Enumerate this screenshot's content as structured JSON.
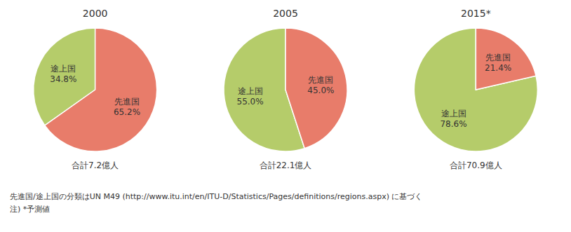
{
  "chart_data": [
    {
      "type": "pie",
      "title": "2000",
      "categories": [
        "途上国",
        "先進国"
      ],
      "values": [
        34.8,
        65.2
      ],
      "value_labels": [
        "34.8%",
        "65.2%"
      ],
      "data_labels": true,
      "colors": [
        "#b5cc6a",
        "#e87c6a"
      ],
      "annotations": [
        "合計7.2億人"
      ]
    },
    {
      "type": "pie",
      "title": "2005",
      "categories": [
        "途上国",
        "先進国"
      ],
      "values": [
        55.0,
        45.0
      ],
      "value_labels": [
        "55.0%",
        "45.0%"
      ],
      "data_labels": true,
      "colors": [
        "#b5cc6a",
        "#e87c6a"
      ],
      "annotations": [
        "合計22.1億人"
      ]
    },
    {
      "type": "pie",
      "title": "2015*",
      "categories": [
        "途上国",
        "先進国"
      ],
      "values": [
        78.6,
        21.4
      ],
      "value_labels": [
        "78.6%",
        "21.4%"
      ],
      "data_labels": true,
      "colors": [
        "#b5cc6a",
        "#e87c6a"
      ],
      "annotations": [
        "合計70.9億人"
      ]
    }
  ],
  "annotations": [
    "先進国/途上国の分類はUN M49 (http://www.itu.int/en/ITU-D/Statistics/Pages/definitions/regions.aspx) に基づく",
    "注) *予測値"
  ]
}
